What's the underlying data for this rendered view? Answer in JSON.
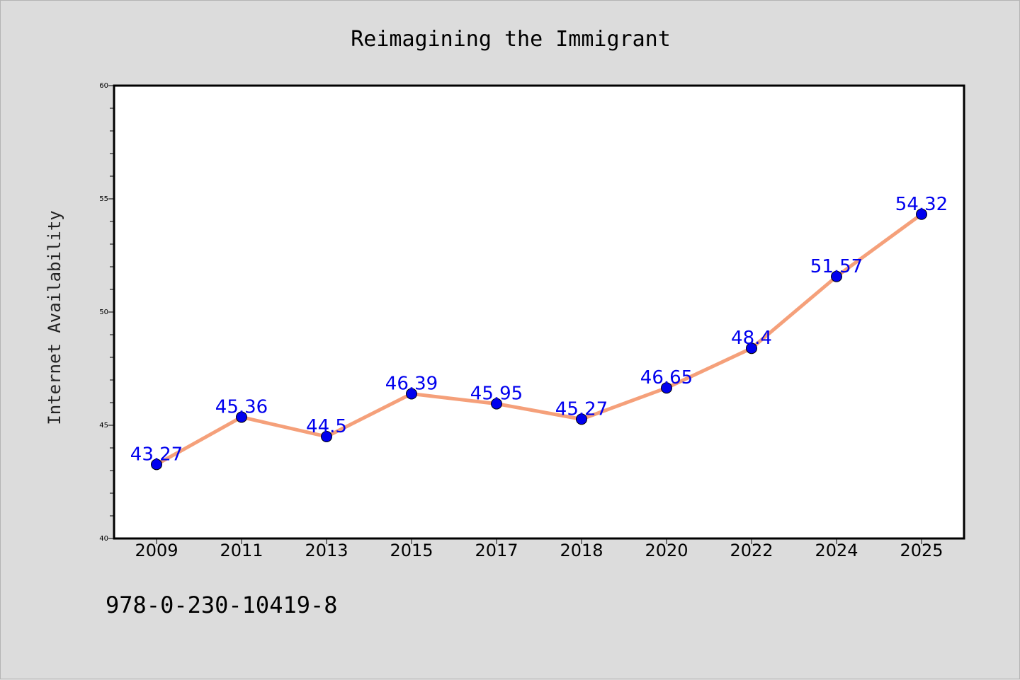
{
  "chart_data": {
    "type": "line",
    "title": "Reimagining the Immigrant",
    "xlabel": "",
    "ylabel": "Internet Availability",
    "categories": [
      "2009",
      "2011",
      "2013",
      "2015",
      "2017",
      "2018",
      "2020",
      "2022",
      "2024",
      "2025"
    ],
    "series": [
      {
        "values": [
          43.27,
          45.36,
          44.5,
          46.39,
          45.95,
          45.27,
          46.65,
          48.4,
          51.57,
          54.32
        ],
        "data_labels": [
          "43.27",
          "45.36",
          "44.5",
          "46.39",
          "45.95",
          "45.27",
          "46.65",
          "48.4",
          "51.57",
          "54.32"
        ],
        "line_color": "#f5a07a",
        "marker_color": "#0000ee",
        "label_color": "#0000ee"
      }
    ],
    "ylim": [
      40,
      60
    ],
    "yticks": [
      "40",
      "45",
      "50",
      "55",
      "60"
    ],
    "grid": false,
    "legend": "none"
  },
  "footer": {
    "isbn": "978-0-230-10419-8"
  }
}
